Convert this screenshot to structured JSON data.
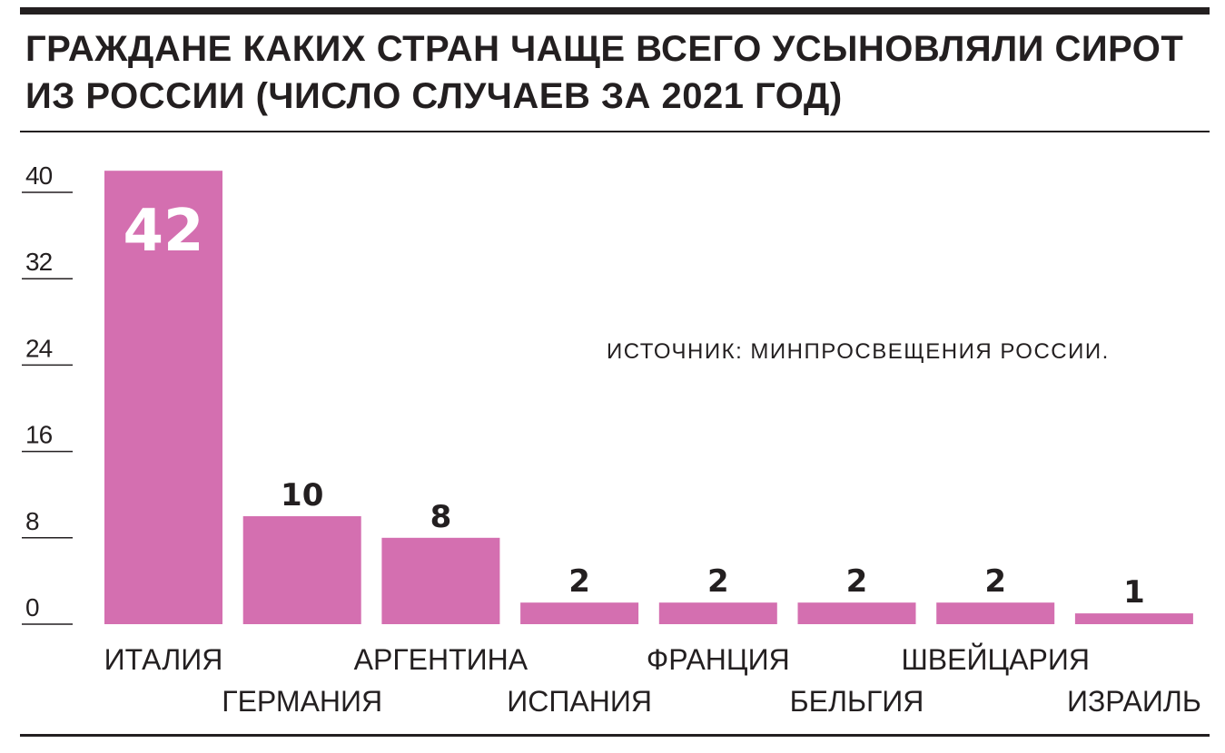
{
  "chart_data": {
    "type": "bar",
    "title": "ГРАЖДАНЕ КАКИХ СТРАН ЧАЩЕ ВСЕГО УСЫНОВЛЯЛИ СИРОТ ИЗ РОССИИ (ЧИСЛО СЛУЧАЕВ ЗА 2021 ГОД)",
    "source": "ИСТОЧНИК: МИНПРОСВЕЩЕНИЯ РОССИИ.",
    "categories": [
      "ИТАЛИЯ",
      "ГЕРМАНИЯ",
      "АРГЕНТИНА",
      "ИСПАНИЯ",
      "ФРАНЦИЯ",
      "БЕЛЬГИЯ",
      "ШВЕЙЦАРИЯ",
      "ИЗРАИЛЬ"
    ],
    "values": [
      42,
      10,
      8,
      2,
      2,
      2,
      2,
      1
    ],
    "value_labels": [
      "42",
      "10",
      "8",
      "2",
      "2",
      "2",
      "2",
      "1"
    ],
    "yticks": [
      0,
      8,
      16,
      24,
      32,
      40
    ],
    "ytick_labels": [
      "0",
      "8",
      "16",
      "24",
      "32",
      "40"
    ],
    "ylim": [
      0,
      42
    ],
    "xlabel": "",
    "ylabel": "",
    "bar_color": "#d46fb0",
    "label_inside_color": "#ffffff",
    "label_outside_color": "#231f20",
    "text_color": "#231f20",
    "grid": false,
    "legend": "none"
  }
}
